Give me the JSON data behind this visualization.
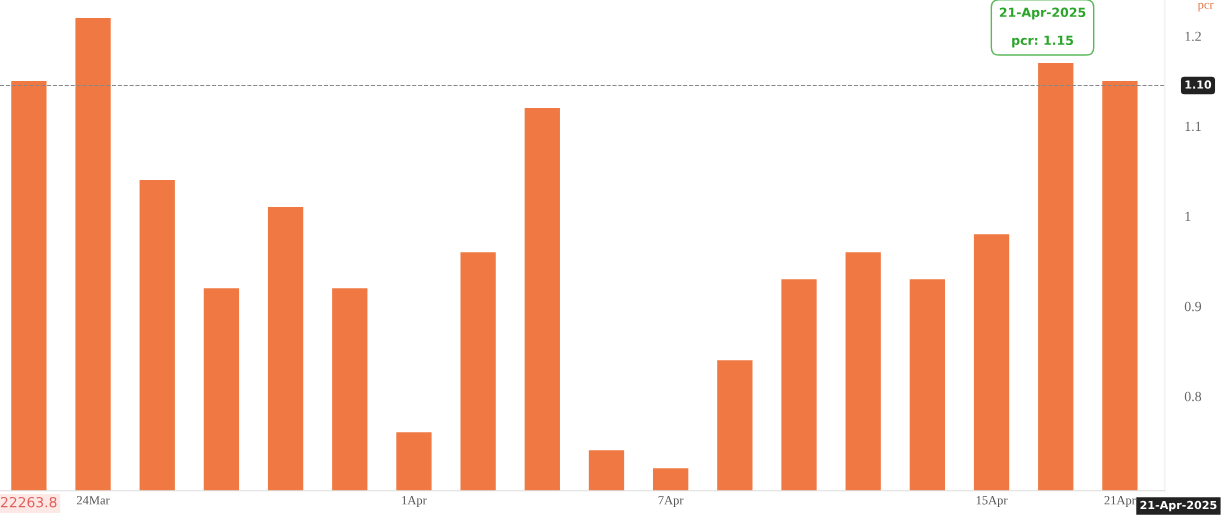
{
  "chart_data": {
    "type": "bar",
    "ylabel": "pcr",
    "categories": [
      null,
      "24Mar",
      null,
      null,
      null,
      null,
      "1Apr",
      null,
      null,
      null,
      "7Apr",
      null,
      null,
      null,
      null,
      "15Apr",
      null,
      "21Apr"
    ],
    "series": [
      {
        "color": "#ef7843",
        "values": [
          1.15,
          1.22,
          1.04,
          0.92,
          1.01,
          0.92,
          0.76,
          0.96,
          1.12,
          0.74,
          0.72,
          0.84,
          0.93,
          0.96,
          0.93,
          0.98,
          1.17,
          1.15
        ]
      }
    ],
    "ylim": [
      0.695,
      1.24
    ],
    "yticks": [
      0.8,
      0.9,
      1,
      1.1,
      1.2
    ],
    "grid": false,
    "ref_lines": [
      {
        "axis": "y",
        "value": 1.145,
        "color": "#888888",
        "line_style": "dashed"
      }
    ],
    "annotations": [
      "21-Apr-2025",
      "pcr: 1.15",
      "22263.8",
      "21-Apr-2025",
      "1.10"
    ]
  }
}
